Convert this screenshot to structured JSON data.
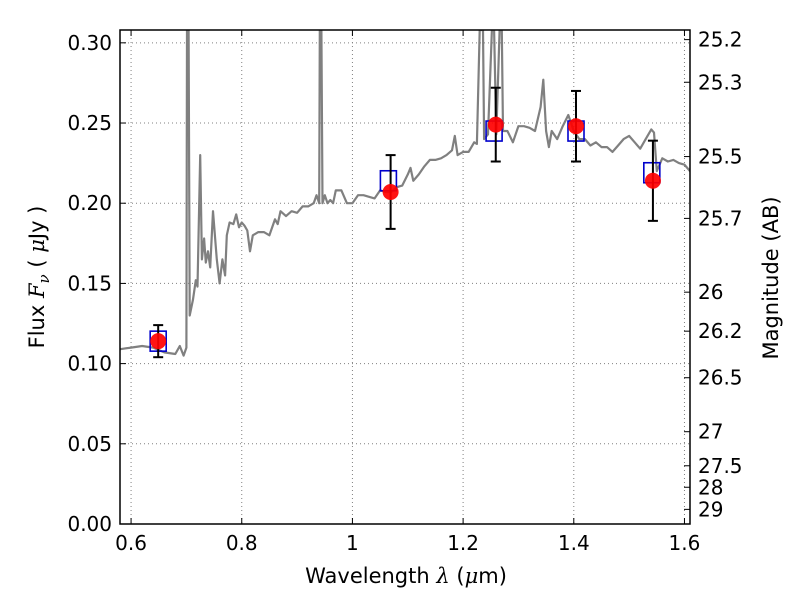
{
  "chart_data": {
    "type": "scatter",
    "xlabel_prefix": "Wavelength",
    "xlabel_symbol": "λ",
    "xlabel_unit_open": "(",
    "xlabel_unit_mu": "μ",
    "xlabel_unit_rest": "m)",
    "ylabel_prefix": "Flux",
    "ylabel_symbol": "F",
    "ylabel_subscript": "ν",
    "ylabel_unit_open": "(",
    "ylabel_unit_mu": "μ",
    "ylabel_unit_rest": "Jy )",
    "y2label": "Magnitude (AB)",
    "xlim": [
      0.58,
      1.61
    ],
    "ylim": [
      0.0,
      0.308
    ],
    "grid": true,
    "x_ticks": [
      {
        "value": 0.6,
        "label": "0.6"
      },
      {
        "value": 0.8,
        "label": "0.8"
      },
      {
        "value": 1.0,
        "label": "1"
      },
      {
        "value": 1.2,
        "label": "1.2"
      },
      {
        "value": 1.4,
        "label": "1.4"
      },
      {
        "value": 1.6,
        "label": "1.6"
      }
    ],
    "y_ticks": [
      {
        "value": 0.0,
        "label": "0.00"
      },
      {
        "value": 0.05,
        "label": "0.05"
      },
      {
        "value": 0.1,
        "label": "0.10"
      },
      {
        "value": 0.15,
        "label": "0.15"
      },
      {
        "value": 0.2,
        "label": "0.20"
      },
      {
        "value": 0.25,
        "label": "0.25"
      },
      {
        "value": 0.3,
        "label": "0.30"
      }
    ],
    "mag_ticks": [
      {
        "value": 25.2,
        "label": "25.2"
      },
      {
        "value": 25.3,
        "label": "25.3"
      },
      {
        "value": 25.5,
        "label": "25.5"
      },
      {
        "value": 25.7,
        "label": "25.7"
      },
      {
        "value": 26.0,
        "label": "26"
      },
      {
        "value": 26.2,
        "label": "26.2"
      },
      {
        "value": 26.5,
        "label": "26.5"
      },
      {
        "value": 27.0,
        "label": "27"
      },
      {
        "value": 27.5,
        "label": "27.5"
      },
      {
        "value": 28.0,
        "label": "28"
      },
      {
        "value": 29.0,
        "label": "29"
      }
    ],
    "observed": [
      {
        "x": 0.649,
        "y": 0.114,
        "err": 0.01
      },
      {
        "x": 1.069,
        "y": 0.207,
        "err": 0.023
      },
      {
        "x": 1.259,
        "y": 0.249,
        "err": 0.023
      },
      {
        "x": 1.404,
        "y": 0.248,
        "err": 0.022
      },
      {
        "x": 1.543,
        "y": 0.214,
        "err": 0.025
      }
    ],
    "model_bandflux": [
      {
        "x": 0.649,
        "y": 0.114
      },
      {
        "x": 1.065,
        "y": 0.214
      },
      {
        "x": 1.256,
        "y": 0.245
      },
      {
        "x": 1.404,
        "y": 0.245
      },
      {
        "x": 1.541,
        "y": 0.219
      }
    ],
    "model_spectrum": [
      [
        0.58,
        0.109
      ],
      [
        0.6,
        0.11
      ],
      [
        0.62,
        0.111
      ],
      [
        0.64,
        0.11
      ],
      [
        0.66,
        0.107
      ],
      [
        0.68,
        0.106
      ],
      [
        0.688,
        0.111
      ],
      [
        0.695,
        0.105
      ],
      [
        0.7,
        0.11
      ],
      [
        0.701,
        0.308
      ],
      [
        0.704,
        0.308
      ],
      [
        0.706,
        0.13
      ],
      [
        0.712,
        0.14
      ],
      [
        0.717,
        0.152
      ],
      [
        0.72,
        0.148
      ],
      [
        0.725,
        0.23
      ],
      [
        0.728,
        0.165
      ],
      [
        0.732,
        0.178
      ],
      [
        0.735,
        0.163
      ],
      [
        0.739,
        0.17
      ],
      [
        0.743,
        0.16
      ],
      [
        0.748,
        0.195
      ],
      [
        0.755,
        0.165
      ],
      [
        0.76,
        0.15
      ],
      [
        0.765,
        0.165
      ],
      [
        0.77,
        0.155
      ],
      [
        0.773,
        0.18
      ],
      [
        0.778,
        0.188
      ],
      [
        0.785,
        0.187
      ],
      [
        0.79,
        0.193
      ],
      [
        0.795,
        0.185
      ],
      [
        0.8,
        0.188
      ],
      [
        0.805,
        0.186
      ],
      [
        0.81,
        0.183
      ],
      [
        0.815,
        0.17
      ],
      [
        0.82,
        0.18
      ],
      [
        0.83,
        0.182
      ],
      [
        0.84,
        0.182
      ],
      [
        0.85,
        0.18
      ],
      [
        0.86,
        0.19
      ],
      [
        0.865,
        0.187
      ],
      [
        0.87,
        0.195
      ],
      [
        0.88,
        0.192
      ],
      [
        0.89,
        0.195
      ],
      [
        0.9,
        0.194
      ],
      [
        0.91,
        0.198
      ],
      [
        0.92,
        0.198
      ],
      [
        0.93,
        0.2
      ],
      [
        0.935,
        0.205
      ],
      [
        0.94,
        0.2
      ],
      [
        0.941,
        0.308
      ],
      [
        0.944,
        0.308
      ],
      [
        0.946,
        0.2
      ],
      [
        0.95,
        0.205
      ],
      [
        0.955,
        0.2
      ],
      [
        0.96,
        0.202
      ],
      [
        0.965,
        0.2
      ],
      [
        0.97,
        0.208
      ],
      [
        0.98,
        0.208
      ],
      [
        0.99,
        0.2
      ],
      [
        1.0,
        0.2
      ],
      [
        1.01,
        0.205
      ],
      [
        1.02,
        0.205
      ],
      [
        1.03,
        0.204
      ],
      [
        1.04,
        0.203
      ],
      [
        1.05,
        0.208
      ],
      [
        1.06,
        0.207
      ],
      [
        1.07,
        0.207
      ],
      [
        1.08,
        0.21
      ],
      [
        1.09,
        0.211
      ],
      [
        1.1,
        0.218
      ],
      [
        1.105,
        0.222
      ],
      [
        1.11,
        0.214
      ],
      [
        1.12,
        0.218
      ],
      [
        1.13,
        0.223
      ],
      [
        1.14,
        0.227
      ],
      [
        1.15,
        0.227
      ],
      [
        1.16,
        0.228
      ],
      [
        1.17,
        0.23
      ],
      [
        1.18,
        0.233
      ],
      [
        1.185,
        0.242
      ],
      [
        1.19,
        0.23
      ],
      [
        1.2,
        0.232
      ],
      [
        1.21,
        0.232
      ],
      [
        1.22,
        0.238
      ],
      [
        1.225,
        0.237
      ],
      [
        1.23,
        0.308
      ],
      [
        1.236,
        0.308
      ],
      [
        1.238,
        0.24
      ],
      [
        1.245,
        0.243
      ],
      [
        1.252,
        0.308
      ],
      [
        1.256,
        0.308
      ],
      [
        1.26,
        0.243
      ],
      [
        1.266,
        0.308
      ],
      [
        1.27,
        0.308
      ],
      [
        1.272,
        0.245
      ],
      [
        1.28,
        0.245
      ],
      [
        1.29,
        0.238
      ],
      [
        1.3,
        0.248
      ],
      [
        1.31,
        0.248
      ],
      [
        1.32,
        0.247
      ],
      [
        1.33,
        0.245
      ],
      [
        1.34,
        0.26
      ],
      [
        1.345,
        0.277
      ],
      [
        1.35,
        0.245
      ],
      [
        1.355,
        0.235
      ],
      [
        1.36,
        0.245
      ],
      [
        1.37,
        0.24
      ],
      [
        1.38,
        0.248
      ],
      [
        1.39,
        0.255
      ],
      [
        1.4,
        0.245
      ],
      [
        1.41,
        0.24
      ],
      [
        1.42,
        0.24
      ],
      [
        1.43,
        0.236
      ],
      [
        1.44,
        0.238
      ],
      [
        1.45,
        0.235
      ],
      [
        1.46,
        0.235
      ],
      [
        1.47,
        0.232
      ],
      [
        1.48,
        0.236
      ],
      [
        1.49,
        0.24
      ],
      [
        1.5,
        0.242
      ],
      [
        1.51,
        0.238
      ],
      [
        1.52,
        0.234
      ],
      [
        1.53,
        0.24
      ],
      [
        1.54,
        0.246
      ],
      [
        1.545,
        0.244
      ],
      [
        1.55,
        0.22
      ],
      [
        1.56,
        0.228
      ],
      [
        1.57,
        0.226
      ],
      [
        1.58,
        0.227
      ],
      [
        1.59,
        0.225
      ],
      [
        1.6,
        0.224
      ],
      [
        1.61,
        0.22
      ]
    ],
    "colors": {
      "spectrum": "#808080",
      "observed": "#ff0000",
      "model": "#0000cc",
      "errorbar": "#000000",
      "grid": "#808080",
      "axes": "#000000"
    }
  }
}
